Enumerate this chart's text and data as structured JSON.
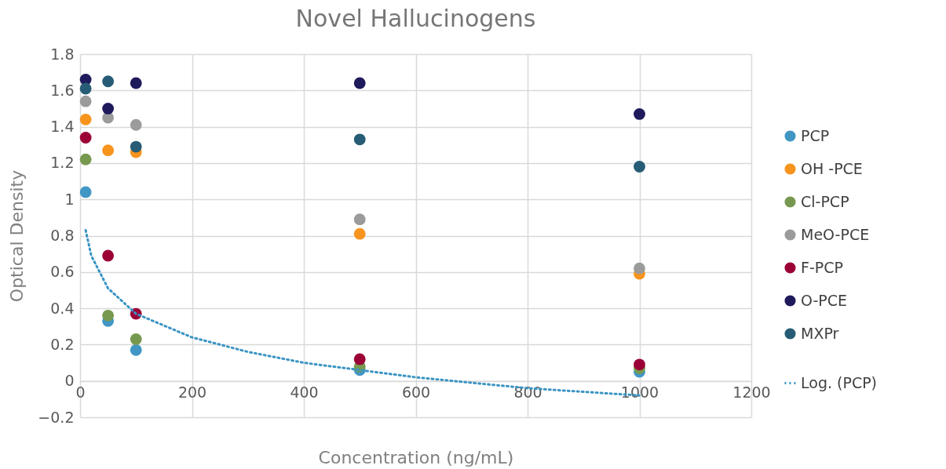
{
  "chart_data": {
    "type": "scatter",
    "title": "Novel Hallucinogens",
    "xlabel": "Concentration (ng/mL)",
    "ylabel": "Optical Density",
    "x": [
      10,
      50,
      100,
      500,
      1000
    ],
    "series": [
      {
        "name": "PCP",
        "color": "#4196c4",
        "values": [
          1.04,
          0.33,
          0.17,
          0.06,
          0.05
        ]
      },
      {
        "name": "OH -PCE",
        "color": "#f7941d",
        "values": [
          1.44,
          1.27,
          1.26,
          0.81,
          0.59
        ]
      },
      {
        "name": "Cl-PCP",
        "color": "#77994f",
        "values": [
          1.22,
          0.36,
          0.23,
          0.08,
          0.07
        ]
      },
      {
        "name": "MeO-PCE",
        "color": "#9b9b9b",
        "values": [
          1.54,
          1.45,
          1.41,
          0.89,
          0.62
        ]
      },
      {
        "name": "F-PCP",
        "color": "#9b0036",
        "values": [
          1.34,
          0.69,
          0.37,
          0.12,
          0.09
        ]
      },
      {
        "name": "O-PCE",
        "color": "#1f1a5c",
        "values": [
          1.66,
          1.5,
          1.64,
          1.64,
          1.47
        ]
      },
      {
        "name": "MXPr",
        "color": "#265c75",
        "values": [
          1.61,
          1.65,
          1.29,
          1.33,
          1.18
        ]
      },
      {
        "name": "Log. (PCP)",
        "type": "line",
        "marker": "none",
        "line_style": "dotted",
        "color": "#3a94c4",
        "x": [
          10,
          20,
          50,
          100,
          200,
          300,
          400,
          500,
          600,
          700,
          800,
          900,
          1000
        ],
        "values": [
          0.83,
          0.69,
          0.51,
          0.37,
          0.24,
          0.16,
          0.1,
          0.06,
          0.02,
          -0.01,
          -0.04,
          -0.06,
          -0.08
        ]
      }
    ],
    "xlim": [
      0,
      1200
    ],
    "xticks": [
      0,
      200,
      400,
      600,
      800,
      1000,
      1200
    ],
    "ylim": [
      -0.2,
      1.8
    ],
    "yticks": [
      -0.2,
      0,
      0.2,
      0.4,
      0.6,
      0.8,
      1,
      1.2,
      1.4,
      1.6,
      1.8
    ],
    "grid": true,
    "legend": "right",
    "marker": "circle"
  }
}
